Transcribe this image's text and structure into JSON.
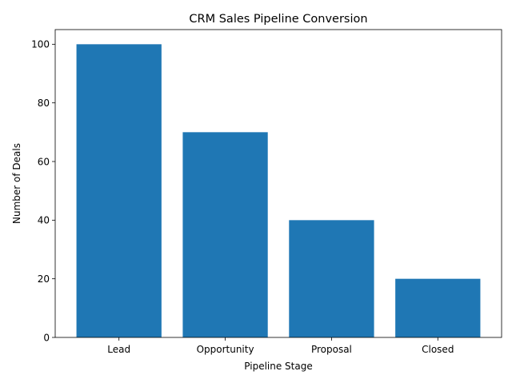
{
  "chart_data": {
    "type": "bar",
    "title": "CRM Sales Pipeline Conversion",
    "xlabel": "Pipeline Stage",
    "ylabel": "Number of Deals",
    "categories": [
      "Lead",
      "Opportunity",
      "Proposal",
      "Closed"
    ],
    "values": [
      100,
      70,
      40,
      20
    ],
    "ylim": [
      0,
      105
    ],
    "yticks": [
      0,
      20,
      40,
      60,
      80,
      100
    ],
    "bar_color": "#1f77b4",
    "grid": false,
    "legend": "none"
  }
}
